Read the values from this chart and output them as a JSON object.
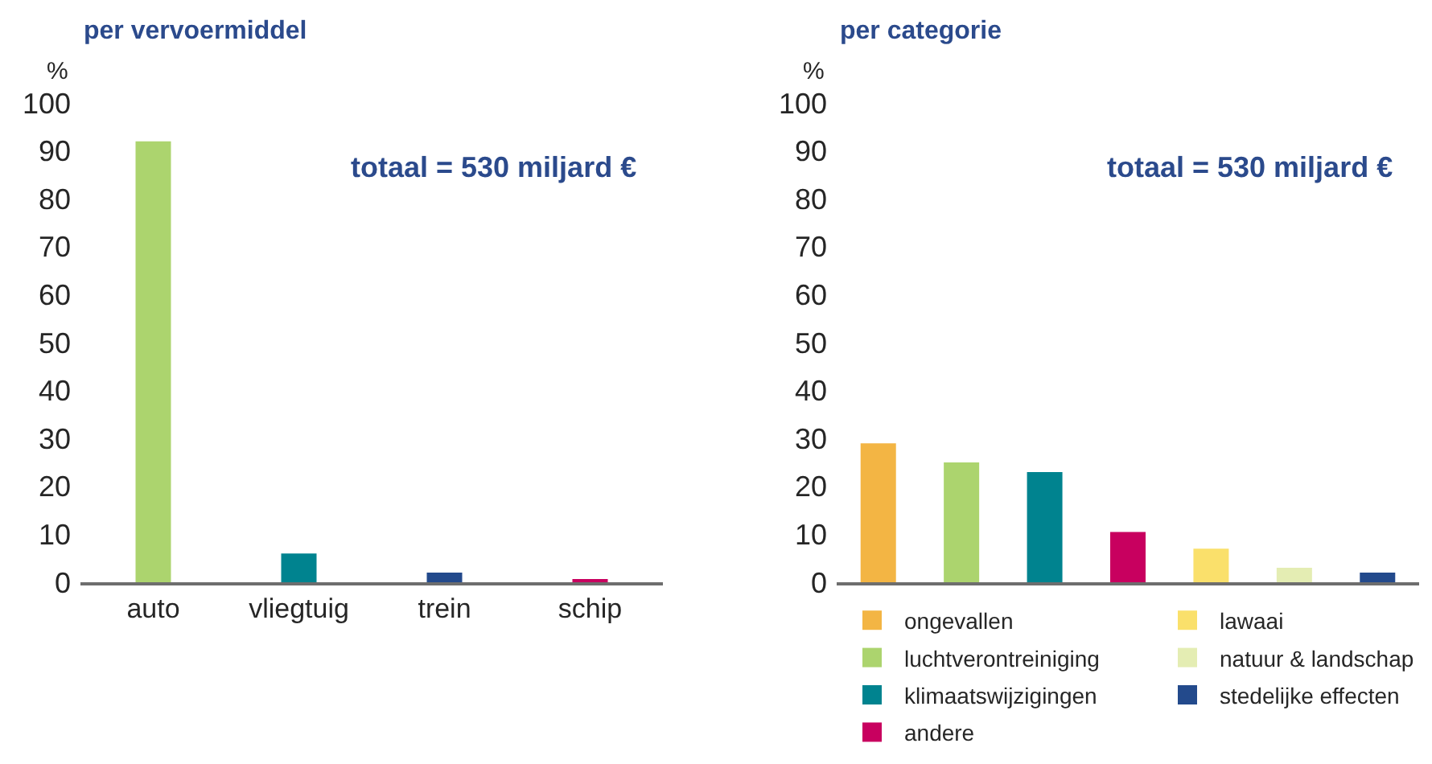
{
  "chart_data": [
    {
      "type": "bar",
      "title": "per vervoermiddel",
      "ylabel": "%",
      "categories": [
        "auto",
        "vliegtuig",
        "trein",
        "schip"
      ],
      "values": [
        92,
        6,
        2,
        0.5
      ],
      "colors": [
        "#acd46e",
        "#00838f",
        "#234a8c",
        "#c8005f"
      ],
      "ylim": [
        0,
        100
      ],
      "yticks": [
        0,
        10,
        20,
        30,
        40,
        50,
        60,
        70,
        80,
        90,
        100
      ],
      "annotations": [
        "totaal = 530 miljard €"
      ]
    },
    {
      "type": "bar",
      "title": "per categorie",
      "ylabel": "%",
      "categories": [
        null,
        null,
        null,
        null,
        null,
        null,
        null
      ],
      "series": [
        {
          "name": "ongevallen",
          "color": "#f3b544",
          "values": [
            29,
            null,
            null,
            null,
            null,
            null,
            null
          ]
        },
        {
          "name": "luchtverontreiniging",
          "color": "#acd46e",
          "values": [
            null,
            25,
            null,
            null,
            null,
            null,
            null
          ]
        },
        {
          "name": "klimaatswijzigingen",
          "color": "#00838f",
          "values": [
            null,
            null,
            23,
            null,
            null,
            null,
            null
          ]
        },
        {
          "name": "andere",
          "color": "#c8005f",
          "values": [
            null,
            null,
            null,
            10.5,
            null,
            null,
            null
          ]
        },
        {
          "name": "lawaai",
          "color": "#fae06b",
          "values": [
            null,
            null,
            null,
            null,
            7,
            null,
            null
          ]
        },
        {
          "name": "natuur & landschap",
          "color": "#e4edb3",
          "values": [
            null,
            null,
            null,
            null,
            null,
            3,
            null
          ]
        },
        {
          "name": "stedelijke effecten",
          "color": "#234a8c",
          "values": [
            null,
            null,
            null,
            null,
            null,
            null,
            2
          ]
        }
      ],
      "ylim": [
        0,
        100
      ],
      "yticks": [
        0,
        10,
        20,
        30,
        40,
        50,
        60,
        70,
        80,
        90,
        100
      ],
      "legend": "bottom",
      "annotations": [
        "totaal = 530 miljard €"
      ]
    }
  ]
}
